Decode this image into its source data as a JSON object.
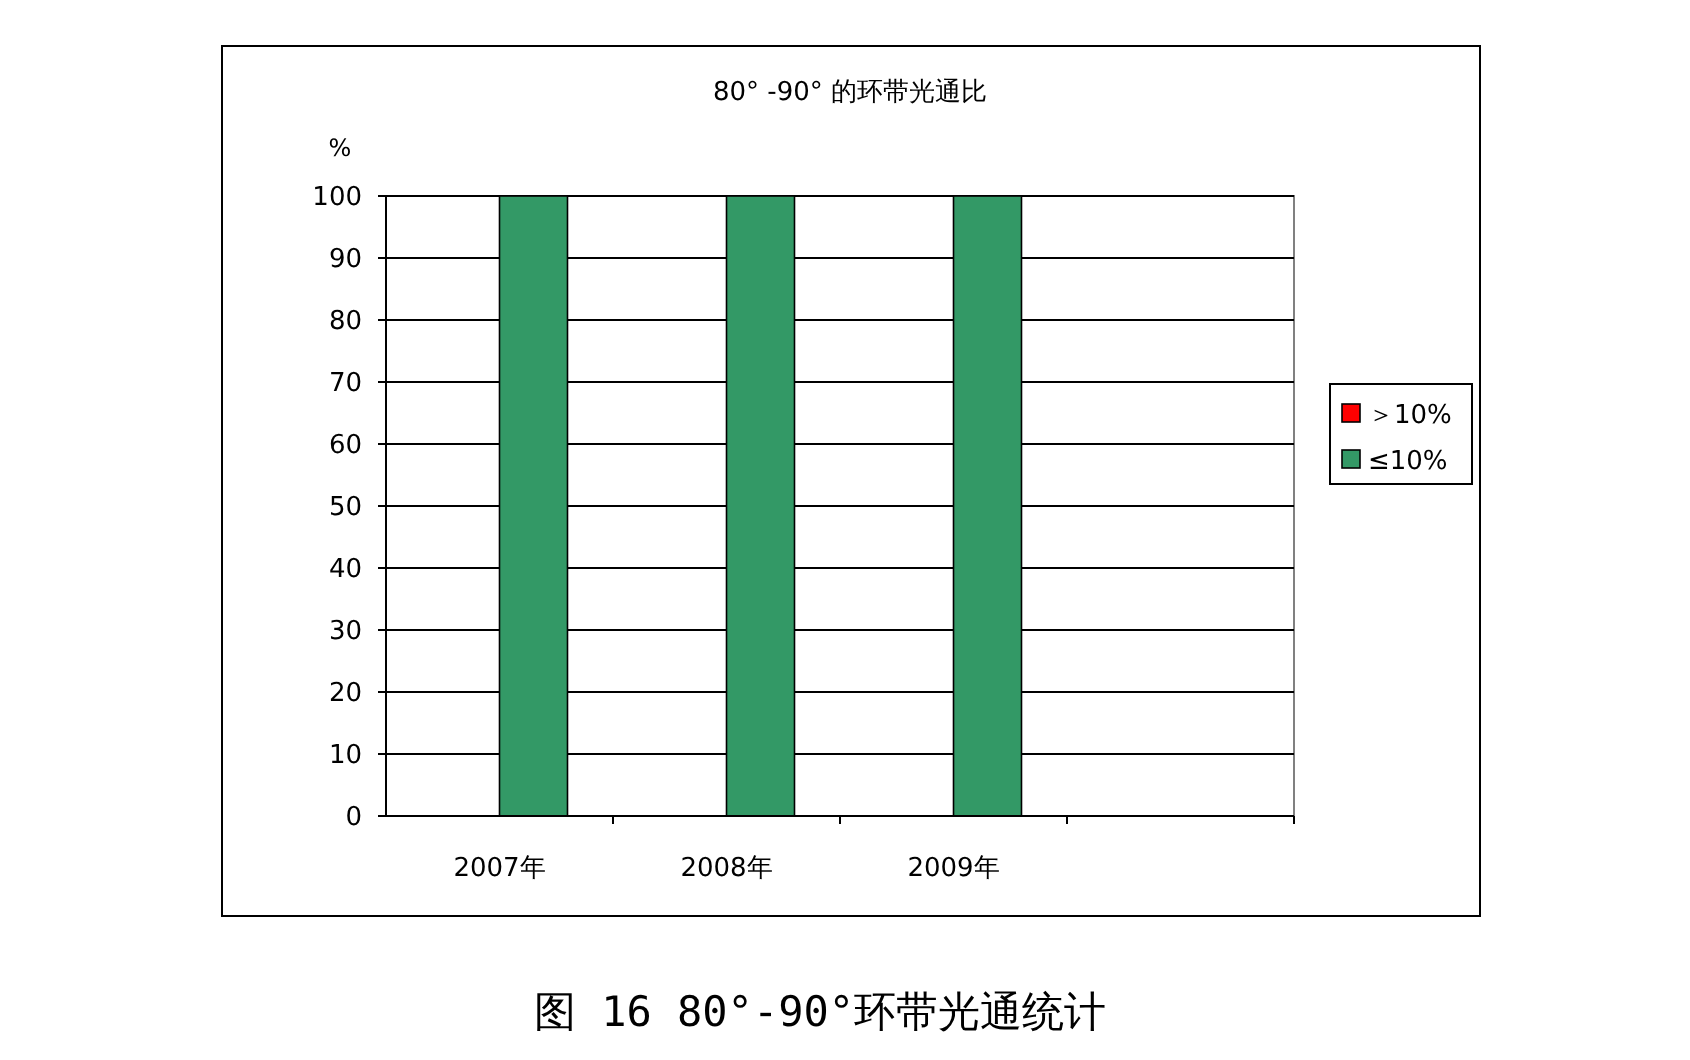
{
  "chart_data": {
    "type": "bar",
    "title": "80° -90° 的环带光通比",
    "ylabel": "%",
    "categories": [
      "2007年",
      "2008年",
      "2009年",
      null
    ],
    "series": [
      {
        "name": "＞10%",
        "color": "#ff0000",
        "values": [
          0,
          0,
          0,
          null
        ]
      },
      {
        "name": "≤10%",
        "color": "#339966",
        "values": [
          100,
          100,
          100,
          null
        ]
      }
    ],
    "ylim": [
      0,
      100
    ],
    "yticks": [
      0,
      10,
      20,
      30,
      40,
      50,
      60,
      70,
      80,
      90,
      100
    ],
    "grid": "y",
    "legend": "right",
    "annotations": [
      "图 16 80°-90°环带光通统计"
    ]
  }
}
